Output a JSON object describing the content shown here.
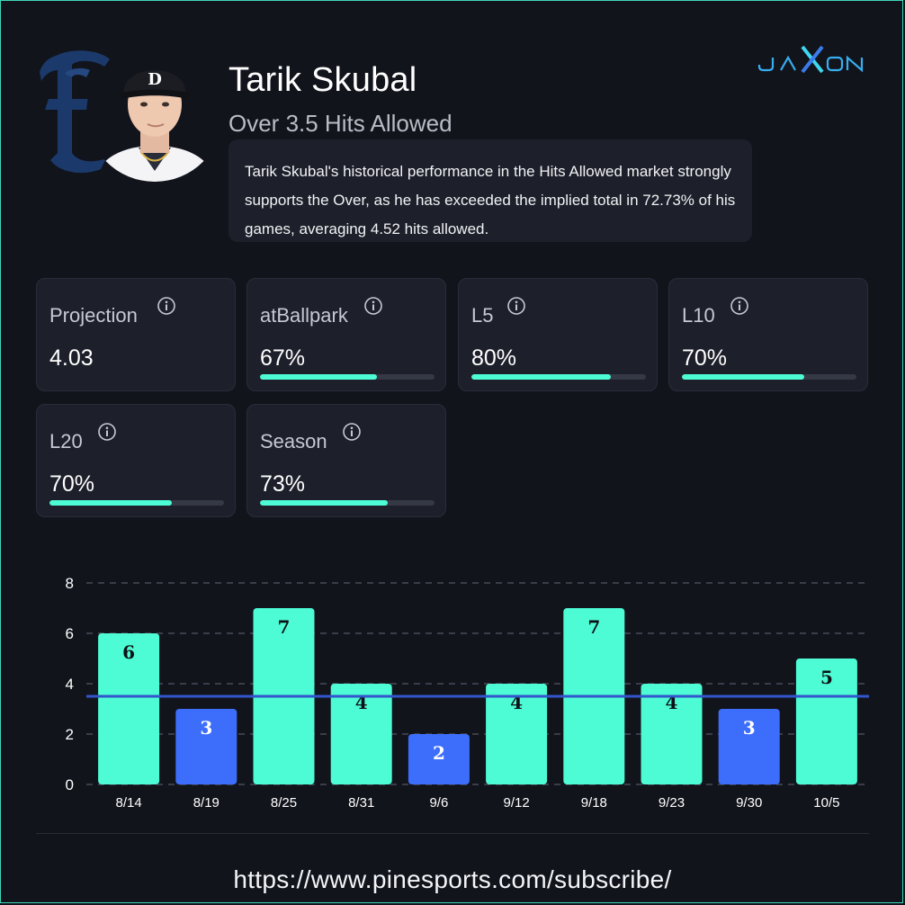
{
  "brand": {
    "logo_text": "JAXON"
  },
  "player": {
    "name": "Tarik Skubal",
    "market": "Over 3.5 Hits Allowed"
  },
  "summary": "Tarik Skubal's historical performance in the Hits Allowed market strongly supports the Over, as he has exceeded the implied total in 72.73% of his games, averaging 4.52 hits allowed.",
  "stats": [
    {
      "label": "Projection",
      "value": "4.03",
      "progress": null
    },
    {
      "label": "atBallpark",
      "value": "67%",
      "progress": 0.67
    },
    {
      "label": "L5",
      "value": "80%",
      "progress": 0.8
    },
    {
      "label": "L10",
      "value": "70%",
      "progress": 0.7
    },
    {
      "label": "L20",
      "value": "70%",
      "progress": 0.7
    },
    {
      "label": "Season",
      "value": "73%",
      "progress": 0.73
    }
  ],
  "colors": {
    "accent": "#4dfcd4",
    "under": "#3d6dfb",
    "line": "#3355cc",
    "background": "#12141c",
    "card": "#1d1f2a"
  },
  "chart_data": {
    "type": "bar",
    "categories": [
      "8/14",
      "8/19",
      "8/25",
      "8/31",
      "9/6",
      "9/12",
      "9/18",
      "9/23",
      "9/30",
      "10/5"
    ],
    "values": [
      6,
      3,
      7,
      4,
      2,
      4,
      7,
      4,
      3,
      5
    ],
    "threshold": 3.5,
    "ylim": [
      0,
      8
    ],
    "yticks": [
      0,
      2,
      4,
      6,
      8
    ],
    "grid": true,
    "xlabel": "",
    "ylabel": "",
    "title": ""
  },
  "footer": {
    "url": "https://www.pinesports.com/subscribe/"
  }
}
